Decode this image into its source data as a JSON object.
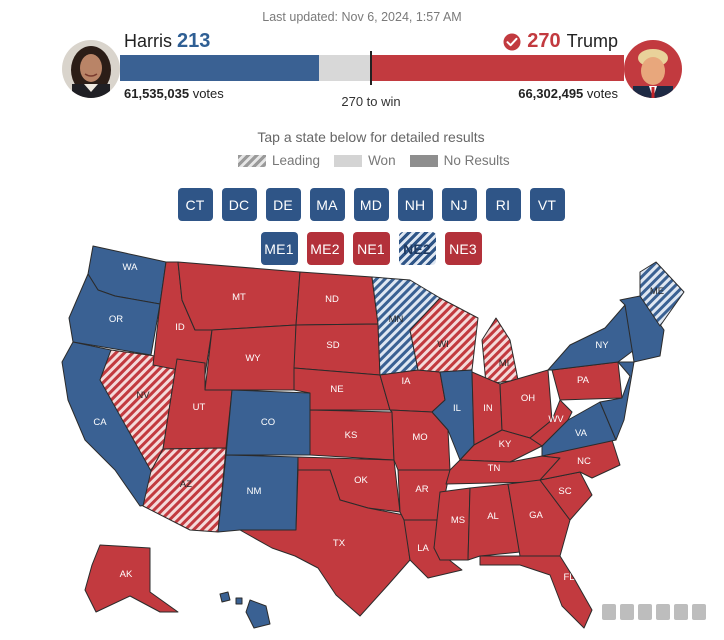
{
  "header": {
    "last_updated": "Last updated: Nov 6, 2024, 1:57 AM"
  },
  "candidates": {
    "harris": {
      "name": "Harris",
      "electoral_votes": "213",
      "votes_label": "61,535,035",
      "votes_suffix": "votes",
      "color": "#3a6193",
      "share_of_bar": 0.394
    },
    "trump": {
      "name": "Trump",
      "electoral_votes": "270",
      "votes_label": "66,302,495",
      "votes_suffix": "votes",
      "color": "#c23a3f",
      "share_of_bar": 0.5,
      "winner_icon": "check-circle-icon"
    }
  },
  "threshold": {
    "label": "270 to win"
  },
  "instructions": {
    "tap_text": "Tap a state below for detailed results"
  },
  "legend": {
    "leading": "Leading",
    "won": "Won",
    "no_results": "No Results"
  },
  "small_states": {
    "row1": [
      {
        "label": "CT",
        "party": "dem"
      },
      {
        "label": "DC",
        "party": "dem"
      },
      {
        "label": "DE",
        "party": "dem"
      },
      {
        "label": "MA",
        "party": "dem"
      },
      {
        "label": "MD",
        "party": "dem"
      },
      {
        "label": "NH",
        "party": "dem"
      },
      {
        "label": "NJ",
        "party": "dem"
      },
      {
        "label": "RI",
        "party": "dem"
      },
      {
        "label": "VT",
        "party": "dem"
      }
    ],
    "row2": [
      {
        "label": "ME1",
        "party": "dem"
      },
      {
        "label": "ME2",
        "party": "rep"
      },
      {
        "label": "NE1",
        "party": "rep"
      },
      {
        "label": "NE2",
        "party": "dem-lean"
      },
      {
        "label": "NE3",
        "party": "rep"
      }
    ]
  },
  "map_states": {
    "WA": "dem",
    "OR": "dem",
    "CA": "dem",
    "NV": "rep-lean",
    "ID": "rep",
    "MT": "rep",
    "WY": "rep",
    "UT": "rep",
    "AZ": "rep-lean",
    "CO": "dem",
    "NM": "dem",
    "ND": "rep",
    "SD": "rep",
    "NE": "rep",
    "KS": "rep",
    "OK": "rep",
    "TX": "rep",
    "MN": "dem-lean",
    "IA": "rep",
    "MO": "rep",
    "AR": "rep",
    "LA": "rep",
    "WI": "rep-lean",
    "IL": "dem",
    "MI": "rep-lean",
    "IN": "rep",
    "OH": "rep",
    "KY": "rep",
    "TN": "rep",
    "MS": "rep",
    "AL": "rep",
    "GA": "rep",
    "FL": "rep",
    "SC": "rep",
    "NC": "rep",
    "VA": "dem",
    "WV": "rep",
    "PA": "rep",
    "NY": "dem",
    "ME": "dem-lean",
    "AK": "rep",
    "HI": "dem"
  },
  "colors": {
    "dem": "#3a6193",
    "rep": "#c23a3f",
    "dem_lean_light": "#dfe7f2",
    "rep_lean_light": "#f4dada"
  }
}
